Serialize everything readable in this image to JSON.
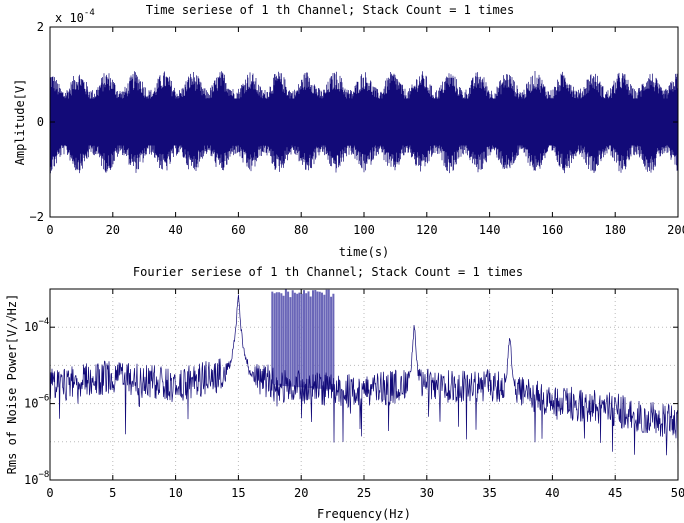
{
  "chart_data": [
    {
      "type": "line",
      "title": "Time seriese of 1 th Channel; Stack Count = 1 times",
      "xlabel": "time(s)",
      "ylabel": "Amplitude[V]",
      "xlim": [
        0,
        200
      ],
      "ylim": [
        -0.0002,
        0.0002
      ],
      "x_ticks": [
        0,
        20,
        40,
        60,
        80,
        100,
        120,
        140,
        160,
        180,
        200
      ],
      "y_ticks": [
        -2,
        0,
        2
      ],
      "y_exponent_label": "x 10",
      "y_exponent": "-4",
      "grid": false,
      "color": "#120a78",
      "envelope": {
        "approx_peak_amplitude": 0.00012,
        "typical_amplitude_range": [
          -9e-05,
          9e-05
        ],
        "beat_period_s": 9.1
      }
    },
    {
      "type": "line",
      "title": "Fourier seriese of 1 th Channel; Stack Count = 1 times",
      "xlabel": "Frequency(Hz)",
      "ylabel": "Rms of Noise Power[V/√Hz]",
      "xlim": [
        0,
        50
      ],
      "ylim": [
        1e-08,
        0.001
      ],
      "yscale": "log",
      "x_ticks": [
        0,
        5,
        10,
        15,
        20,
        25,
        30,
        35,
        40,
        45,
        50
      ],
      "y_ticks": [
        {
          "base": "10",
          "exp": "-4"
        },
        {
          "base": "10",
          "exp": "-6"
        },
        {
          "base": "10",
          "exp": "-8"
        }
      ],
      "grid": true,
      "color": "#120a78",
      "noise_floor": [
        {
          "x": 0,
          "y": 3e-06
        },
        {
          "x": 5,
          "y": 5e-06
        },
        {
          "x": 10,
          "y": 3e-06
        },
        {
          "x": 14,
          "y": 6e-06
        },
        {
          "x": 16,
          "y": 6e-06
        },
        {
          "x": 18,
          "y": 3e-06
        },
        {
          "x": 25,
          "y": 2e-06
        },
        {
          "x": 28,
          "y": 3e-06
        },
        {
          "x": 35,
          "y": 3e-06
        },
        {
          "x": 40,
          "y": 1.2e-06
        },
        {
          "x": 45,
          "y": 7e-07
        },
        {
          "x": 50,
          "y": 3e-07
        }
      ],
      "peaks": [
        {
          "x": 15.0,
          "y": 0.001
        },
        {
          "x": 29.0,
          "y": 0.00013
        },
        {
          "x": 36.6,
          "y": 8e-05
        }
      ],
      "comb_band": {
        "x_start": 17.7,
        "x_end": 22.7,
        "peak_y": 0.001
      }
    }
  ]
}
